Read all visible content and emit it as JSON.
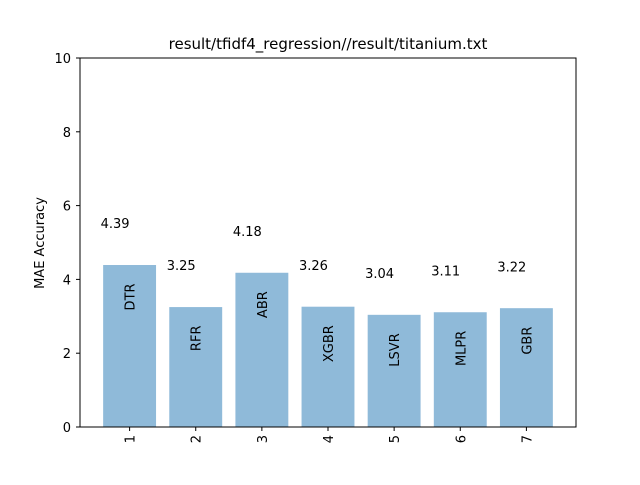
{
  "chart_data": {
    "type": "bar",
    "title": "result/tfidf4_regression//result/titanium.txt",
    "xlabel": "",
    "ylabel": "MAE Accuracy",
    "ylim": [
      0,
      10
    ],
    "yticks": [
      "0",
      "2",
      "4",
      "6",
      "8",
      "10"
    ],
    "categories": [
      "1",
      "2",
      "3",
      "4",
      "5",
      "6",
      "7"
    ],
    "values": [
      4.39,
      3.25,
      4.18,
      3.26,
      3.04,
      3.11,
      3.22
    ],
    "value_labels": [
      "4.39",
      "3.25",
      "4.18",
      "3.26",
      "3.04",
      "3.11",
      "3.22"
    ],
    "bar_labels": [
      "DTR",
      "RFR",
      "ABR",
      "XGBR",
      "LSVR",
      "MLPR",
      "GBR"
    ],
    "bar_color": "#8fbad9",
    "grid": false
  }
}
